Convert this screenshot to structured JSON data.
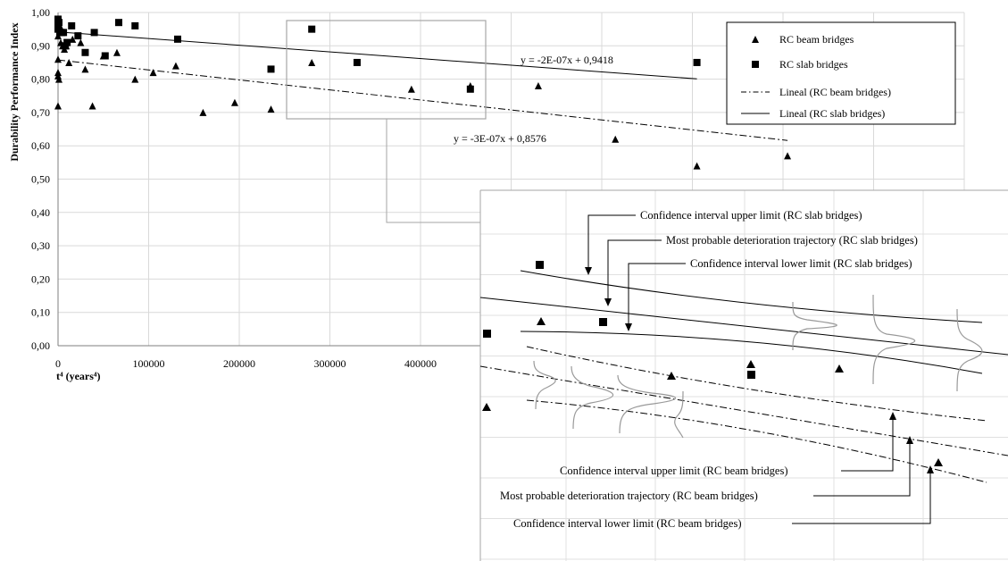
{
  "chart_data": {
    "type": "scatter",
    "xlabel": "t⁴ (years⁴)",
    "ylabel": "Durability Performance Index",
    "xlim": [
      0,
      1000000
    ],
    "ylim": [
      0,
      1
    ],
    "x_ticks": [
      "0",
      "100000",
      "200000",
      "300000",
      "400000"
    ],
    "y_ticks": [
      "0,00",
      "0,10",
      "0,20",
      "0,30",
      "0,40",
      "0,50",
      "0,60",
      "0,70",
      "0,80",
      "0,90",
      "1,00"
    ],
    "grid": true,
    "legend_position": "top-right",
    "series": [
      {
        "name": "RC beam bridges",
        "marker": "triangle",
        "points": [
          [
            0,
            0.72
          ],
          [
            0,
            0.81
          ],
          [
            0,
            0.82
          ],
          [
            0,
            0.86
          ],
          [
            0,
            0.93
          ],
          [
            1000,
            0.8
          ],
          [
            2000,
            0.96
          ],
          [
            3000,
            0.91
          ],
          [
            5000,
            0.9
          ],
          [
            7000,
            0.89
          ],
          [
            9000,
            0.9
          ],
          [
            12000,
            0.85
          ],
          [
            16000,
            0.92
          ],
          [
            25000,
            0.91
          ],
          [
            30000,
            0.83
          ],
          [
            38000,
            0.72
          ],
          [
            50000,
            0.87
          ],
          [
            65000,
            0.88
          ],
          [
            85000,
            0.8
          ],
          [
            105000,
            0.82
          ],
          [
            130000,
            0.84
          ],
          [
            160000,
            0.7
          ],
          [
            195000,
            0.73
          ],
          [
            235000,
            0.71
          ],
          [
            280000,
            0.85
          ],
          [
            390000,
            0.77
          ],
          [
            455000,
            0.78
          ],
          [
            530000,
            0.78
          ],
          [
            615000,
            0.62
          ],
          [
            705000,
            0.54
          ],
          [
            805000,
            0.57
          ]
        ]
      },
      {
        "name": "RC slab bridges",
        "marker": "square",
        "points": [
          [
            0,
            0.95
          ],
          [
            0,
            0.96
          ],
          [
            0,
            0.98
          ],
          [
            1000,
            0.97
          ],
          [
            2000,
            0.94
          ],
          [
            4000,
            0.94
          ],
          [
            6000,
            0.94
          ],
          [
            8000,
            0.9
          ],
          [
            10000,
            0.91
          ],
          [
            15000,
            0.96
          ],
          [
            22000,
            0.93
          ],
          [
            30000,
            0.88
          ],
          [
            40000,
            0.94
          ],
          [
            52000,
            0.87
          ],
          [
            67000,
            0.97
          ],
          [
            85000,
            0.96
          ],
          [
            132000,
            0.92
          ],
          [
            235000,
            0.83
          ],
          [
            280000,
            0.95
          ],
          [
            330000,
            0.85
          ],
          [
            455000,
            0.77
          ],
          [
            705000,
            0.85
          ]
        ]
      },
      {
        "name": "Lineal (RC beam bridges)",
        "type": "trendline",
        "style": "dash-dot",
        "slope": -3e-07,
        "intercept": 0.8576,
        "x_range": [
          0,
          805000
        ],
        "equation": "y = -3E-07x + 0,8576"
      },
      {
        "name": "Lineal (RC slab bridges)",
        "type": "trendline",
        "style": "solid",
        "slope": -2e-07,
        "intercept": 0.9418,
        "x_range": [
          0,
          705000
        ],
        "equation": "y = -2E-07x + 0,9418"
      }
    ],
    "inset": {
      "zoom_region": {
        "x": [
          250000,
          470000
        ],
        "y": [
          0.68,
          0.98
        ]
      },
      "labels": {
        "slab_upper": "Confidence interval upper limit (RC slab bridges)",
        "slab_probable": "Most probable deterioration trajectory (RC slab bridges)",
        "slab_lower": "Confidence interval lower limit (RC slab bridges)",
        "beam_upper": "Confidence interval upper limit (RC beam bridges)",
        "beam_probable": "Most probable deterioration trajectory (RC beam bridges)",
        "beam_lower": "Confidence interval lower limit (RC beam bridges)"
      }
    }
  }
}
